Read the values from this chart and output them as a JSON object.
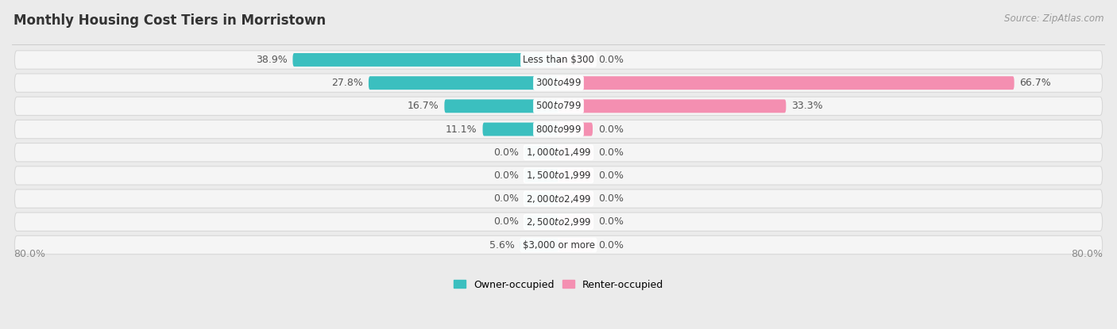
{
  "title": "Monthly Housing Cost Tiers in Morristown",
  "source": "Source: ZipAtlas.com",
  "categories": [
    "Less than $300",
    "$300 to $499",
    "$500 to $799",
    "$800 to $999",
    "$1,000 to $1,499",
    "$1,500 to $1,999",
    "$2,000 to $2,499",
    "$2,500 to $2,999",
    "$3,000 or more"
  ],
  "owner_values": [
    38.9,
    27.8,
    16.7,
    11.1,
    0.0,
    0.0,
    0.0,
    0.0,
    5.6
  ],
  "renter_values": [
    0.0,
    66.7,
    33.3,
    0.0,
    0.0,
    0.0,
    0.0,
    0.0,
    0.0
  ],
  "owner_color": "#3bbfbf",
  "renter_color": "#f48fb1",
  "bg_color": "#ebebeb",
  "row_color": "#f5f5f5",
  "row_border_color": "#d8d8d8",
  "axis_limit": 80.0,
  "zero_stub": 5.0,
  "legend_owner": "Owner-occupied",
  "legend_renter": "Renter-occupied",
  "title_fontsize": 12,
  "source_fontsize": 8.5,
  "value_fontsize": 9,
  "category_fontsize": 8.5,
  "axis_label_fontsize": 9
}
